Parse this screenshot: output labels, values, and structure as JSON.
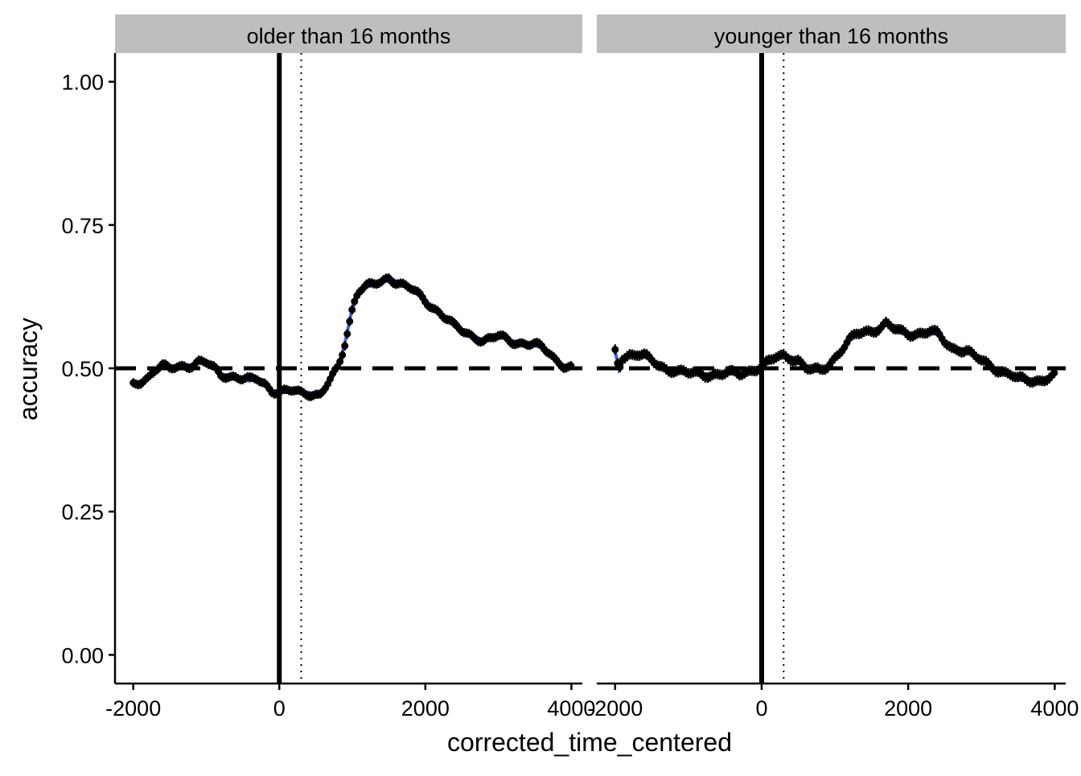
{
  "chart_data": {
    "type": "scatter",
    "xlabel": "corrected_time_centered",
    "ylabel": "accuracy",
    "xlim": [
      -2250,
      4150
    ],
    "ylim": [
      -0.05,
      1.05
    ],
    "x_ticks": [
      -2000,
      0,
      2000,
      4000
    ],
    "x_tick_labels": [
      "-2000",
      "0",
      "2000",
      "4000"
    ],
    "y_ticks": [
      0,
      0.25,
      0.5,
      0.75,
      1
    ],
    "y_tick_labels": [
      "0.00",
      "0.25",
      "0.50",
      "0.75",
      "1.00"
    ],
    "reference_lines": {
      "solid_vertical_x": 0,
      "dotted_vertical_x": 300,
      "dashed_horizontal_y": 0.5
    },
    "grid": false,
    "colors": {
      "points": "#000000",
      "smooth": "#3366FF",
      "strip_bg": "#BEBEBE"
    },
    "panels": [
      {
        "label": "older than 16 months",
        "x_start": -2000,
        "x_end": 4000,
        "x_step": 33.3,
        "profile": [
          [
            -2000,
            0.472
          ],
          [
            -1900,
            0.478
          ],
          [
            -1800,
            0.485
          ],
          [
            -1700,
            0.498
          ],
          [
            -1600,
            0.502
          ],
          [
            -1500,
            0.498
          ],
          [
            -1400,
            0.503
          ],
          [
            -1300,
            0.506
          ],
          [
            -1200,
            0.506
          ],
          [
            -1100,
            0.51
          ],
          [
            -1000,
            0.508
          ],
          [
            -900,
            0.5
          ],
          [
            -800,
            0.49
          ],
          [
            -700,
            0.488
          ],
          [
            -600,
            0.485
          ],
          [
            -500,
            0.48
          ],
          [
            -400,
            0.478
          ],
          [
            -300,
            0.482
          ],
          [
            -200,
            0.475
          ],
          [
            -100,
            0.462
          ],
          [
            0,
            0.458
          ],
          [
            100,
            0.458
          ],
          [
            200,
            0.46
          ],
          [
            300,
            0.458
          ],
          [
            400,
            0.458
          ],
          [
            500,
            0.455
          ],
          [
            550,
            0.452
          ],
          [
            600,
            0.46
          ],
          [
            700,
            0.478
          ],
          [
            800,
            0.5
          ],
          [
            850,
            0.52
          ],
          [
            900,
            0.545
          ],
          [
            950,
            0.575
          ],
          [
            1000,
            0.605
          ],
          [
            1050,
            0.628
          ],
          [
            1100,
            0.638
          ],
          [
            1200,
            0.642
          ],
          [
            1300,
            0.645
          ],
          [
            1400,
            0.65
          ],
          [
            1500,
            0.66
          ],
          [
            1600,
            0.652
          ],
          [
            1700,
            0.645
          ],
          [
            1800,
            0.638
          ],
          [
            1900,
            0.628
          ],
          [
            2000,
            0.618
          ],
          [
            2100,
            0.608
          ],
          [
            2200,
            0.598
          ],
          [
            2300,
            0.585
          ],
          [
            2400,
            0.572
          ],
          [
            2500,
            0.565
          ],
          [
            2600,
            0.56
          ],
          [
            2700,
            0.555
          ],
          [
            2800,
            0.548
          ],
          [
            2900,
            0.55
          ],
          [
            3000,
            0.555
          ],
          [
            3100,
            0.552
          ],
          [
            3200,
            0.548
          ],
          [
            3300,
            0.545
          ],
          [
            3400,
            0.542
          ],
          [
            3500,
            0.54
          ],
          [
            3600,
            0.535
          ],
          [
            3700,
            0.528
          ],
          [
            3800,
            0.515
          ],
          [
            3900,
            0.505
          ],
          [
            4000,
            0.5
          ]
        ],
        "error_half_width": 0.008
      },
      {
        "label": "younger than 16 months",
        "x_start": -2000,
        "x_end": 4000,
        "x_step": 33.3,
        "profile": [
          [
            -2000,
            0.53
          ],
          [
            -1950,
            0.5
          ],
          [
            -1900,
            0.52
          ],
          [
            -1800,
            0.525
          ],
          [
            -1700,
            0.525
          ],
          [
            -1600,
            0.52
          ],
          [
            -1500,
            0.512
          ],
          [
            -1400,
            0.505
          ],
          [
            -1300,
            0.5
          ],
          [
            -1200,
            0.498
          ],
          [
            -1100,
            0.493
          ],
          [
            -1000,
            0.49
          ],
          [
            -900,
            0.49
          ],
          [
            -800,
            0.49
          ],
          [
            -700,
            0.49
          ],
          [
            -600,
            0.49
          ],
          [
            -500,
            0.49
          ],
          [
            -400,
            0.49
          ],
          [
            -300,
            0.49
          ],
          [
            -200,
            0.495
          ],
          [
            -100,
            0.5
          ],
          [
            0,
            0.503
          ],
          [
            100,
            0.51
          ],
          [
            200,
            0.518
          ],
          [
            300,
            0.522
          ],
          [
            400,
            0.52
          ],
          [
            500,
            0.515
          ],
          [
            600,
            0.5
          ],
          [
            700,
            0.495
          ],
          [
            800,
            0.495
          ],
          [
            900,
            0.505
          ],
          [
            1000,
            0.52
          ],
          [
            1100,
            0.535
          ],
          [
            1200,
            0.548
          ],
          [
            1300,
            0.558
          ],
          [
            1400,
            0.563
          ],
          [
            1500,
            0.566
          ],
          [
            1600,
            0.572
          ],
          [
            1700,
            0.578
          ],
          [
            1800,
            0.568
          ],
          [
            1900,
            0.562
          ],
          [
            2000,
            0.56
          ],
          [
            2100,
            0.562
          ],
          [
            2200,
            0.563
          ],
          [
            2300,
            0.565
          ],
          [
            2400,
            0.558
          ],
          [
            2500,
            0.545
          ],
          [
            2600,
            0.535
          ],
          [
            2700,
            0.535
          ],
          [
            2800,
            0.532
          ],
          [
            2900,
            0.52
          ],
          [
            3000,
            0.512
          ],
          [
            3100,
            0.505
          ],
          [
            3200,
            0.5
          ],
          [
            3300,
            0.495
          ],
          [
            3400,
            0.49
          ],
          [
            3500,
            0.48
          ],
          [
            3600,
            0.478
          ],
          [
            3700,
            0.478
          ],
          [
            3800,
            0.48
          ],
          [
            3900,
            0.485
          ],
          [
            4000,
            0.488
          ]
        ],
        "error_half_width": 0.009
      }
    ]
  }
}
